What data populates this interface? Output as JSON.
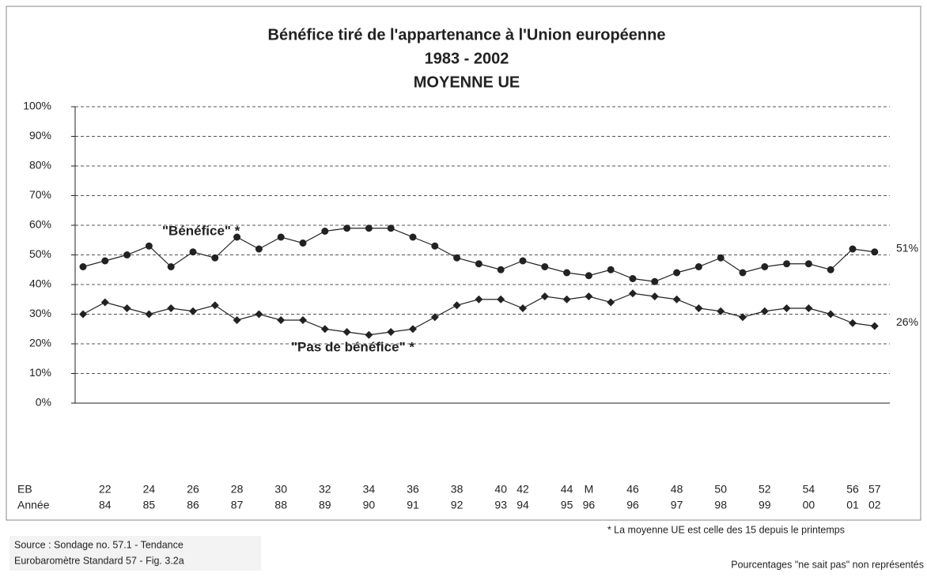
{
  "chart_data": {
    "type": "line",
    "title": [
      "Bénéfice tiré de l'appartenance à l'Union européenne",
      "1983 - 2002",
      "MOYENNE UE"
    ],
    "row_labels": [
      "EB",
      "Année"
    ],
    "categories": [
      null,
      "22",
      null,
      "24",
      null,
      "26",
      null,
      "28",
      null,
      "30",
      null,
      "32",
      null,
      "34",
      null,
      "36",
      null,
      "38",
      null,
      "40",
      "42",
      null,
      "44",
      "M",
      null,
      "46",
      null,
      "48",
      null,
      "50",
      null,
      "52",
      null,
      "54",
      null,
      "56",
      "57"
    ],
    "categories2": [
      null,
      "84",
      null,
      "85",
      null,
      "86",
      null,
      "87",
      null,
      "88",
      null,
      "89",
      null,
      "90",
      null,
      "91",
      null,
      "92",
      null,
      "93",
      "94",
      null,
      "95",
      "96",
      null,
      "96",
      null,
      "97",
      null,
      "98",
      null,
      "99",
      null,
      "00",
      null,
      "01",
      "02"
    ],
    "series": [
      {
        "name": "\"Bénéfice\" *",
        "color": "#222222",
        "marker": "circle",
        "end_label": "51%",
        "values": [
          46,
          48,
          50,
          53,
          46,
          51,
          49,
          56,
          52,
          56,
          54,
          58,
          59,
          59,
          59,
          56,
          53,
          49,
          47,
          45,
          48,
          46,
          44,
          43,
          45,
          42,
          41,
          44,
          46,
          49,
          44,
          46,
          47,
          47,
          45,
          52,
          51
        ]
      },
      {
        "name": "\"Pas de bénéfice\" *",
        "color": "#222222",
        "marker": "diamond",
        "end_label": "26%",
        "values": [
          30,
          34,
          32,
          30,
          32,
          31,
          33,
          28,
          30,
          28,
          28,
          25,
          24,
          23,
          24,
          25,
          29,
          33,
          35,
          35,
          32,
          36,
          35,
          36,
          34,
          37,
          36,
          35,
          32,
          31,
          29,
          31,
          32,
          32,
          30,
          27,
          26
        ]
      }
    ],
    "ylim": [
      0,
      100
    ],
    "yticks": [
      {
        "value": 0,
        "label": "0%"
      },
      {
        "value": 10,
        "label": "10%"
      },
      {
        "value": 20,
        "label": "20%"
      },
      {
        "value": 30,
        "label": "30%"
      },
      {
        "value": 40,
        "label": "40%"
      },
      {
        "value": 50,
        "label": "50%"
      },
      {
        "value": 60,
        "label": "60%"
      },
      {
        "value": 70,
        "label": "70%"
      },
      {
        "value": 80,
        "label": "80%"
      },
      {
        "value": 90,
        "label": "90%"
      },
      {
        "value": 100,
        "label": "100%"
      }
    ],
    "grid": true,
    "footnote": "* La moyenne UE est celle des 15 depuis le printemps",
    "source": [
      "Source : Sondage no. 57.1 - Tendance",
      "Eurobaromètre Standard 57 - Fig. 3.2a"
    ],
    "note": "Pourcentages \"ne sait pas\" non représentés"
  }
}
